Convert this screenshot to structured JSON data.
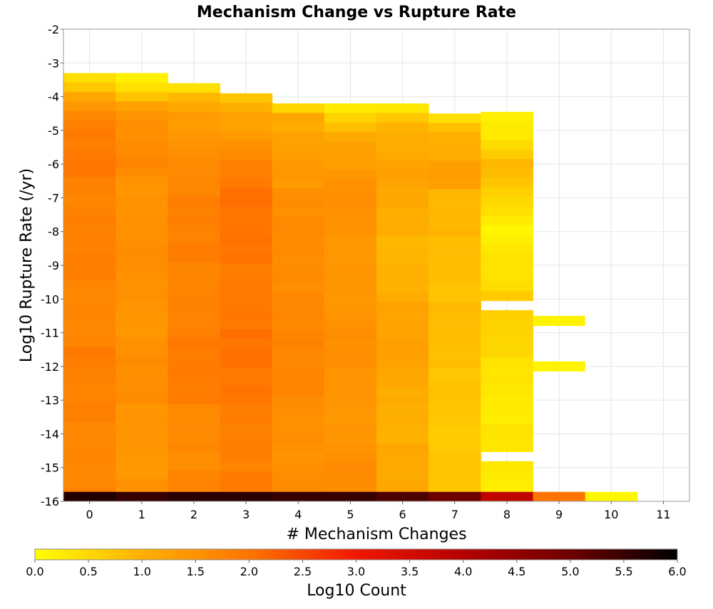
{
  "chart_data": {
    "type": "heatmap",
    "title": "Mechanism Change vs Rupture Rate",
    "xlabel": "# Mechanism Changes",
    "ylabel": "Log10 Rupture Rate (/yr)",
    "xlim": [
      -0.5,
      11.5
    ],
    "ylim": [
      -16,
      -2
    ],
    "x_ticks": [
      0,
      1,
      2,
      3,
      4,
      5,
      6,
      7,
      8,
      9,
      10,
      11
    ],
    "y_ticks": [
      -16,
      -15,
      -14,
      -13,
      -12,
      -11,
      -10,
      -9,
      -8,
      -7,
      -6,
      -5,
      -4,
      -3,
      -2
    ],
    "grid": true,
    "y_bin_width": 0.28,
    "colorbar": {
      "label": "Log10 Count",
      "range": [
        0,
        6
      ],
      "ticks": [
        "0.0",
        "0.5",
        "1.0",
        "1.5",
        "2.0",
        "2.5",
        "3.0",
        "3.5",
        "4.0",
        "4.5",
        "5.0",
        "5.5",
        "6.0"
      ],
      "stops": [
        {
          "v": 0.0,
          "color": "#ffff00"
        },
        {
          "v": 1.0,
          "color": "#ffb000"
        },
        {
          "v": 2.0,
          "color": "#ff7400"
        },
        {
          "v": 3.0,
          "color": "#f01800"
        },
        {
          "v": 4.0,
          "color": "#b40000"
        },
        {
          "v": 5.0,
          "color": "#6e0000"
        },
        {
          "v": 6.0,
          "color": "#000000"
        }
      ]
    },
    "columns": [
      {
        "x": 0,
        "ytop": -3.3,
        "base": 1.8,
        "profile": [
          [
            -3.3,
            0.15
          ],
          [
            -3.6,
            0.5
          ],
          [
            -3.9,
            1.0
          ],
          [
            -4.5,
            1.6
          ],
          [
            -5.2,
            1.9
          ],
          [
            -6.2,
            2.0
          ],
          [
            -7,
            1.7
          ],
          [
            -9,
            1.75
          ],
          [
            -11,
            1.8
          ],
          [
            -13,
            1.7
          ],
          [
            -15,
            1.75
          ],
          [
            -15.8,
            1.7
          ]
        ]
      },
      {
        "x": 1,
        "ytop": -3.3,
        "base": 1.5,
        "profile": [
          [
            -3.3,
            0.05
          ],
          [
            -3.8,
            0.4
          ],
          [
            -4.3,
            1.2
          ],
          [
            -5,
            1.55
          ],
          [
            -6,
            1.75
          ],
          [
            -7,
            1.4
          ],
          [
            -9,
            1.6
          ],
          [
            -11,
            1.5
          ],
          [
            -13,
            1.55
          ],
          [
            -15,
            1.5
          ],
          [
            -15.8,
            1.45
          ]
        ]
      },
      {
        "x": 2,
        "ytop": -3.6,
        "base": 1.7,
        "profile": [
          [
            -3.6,
            0.1
          ],
          [
            -4,
            0.9
          ],
          [
            -4.6,
            1.3
          ],
          [
            -5.5,
            1.6
          ],
          [
            -6.5,
            1.8
          ],
          [
            -8,
            1.75
          ],
          [
            -10,
            1.85
          ],
          [
            -12,
            1.8
          ],
          [
            -14,
            1.7
          ],
          [
            -15.8,
            1.65
          ]
        ]
      },
      {
        "x": 3,
        "ytop": -3.9,
        "base": 1.9,
        "profile": [
          [
            -3.9,
            0.5
          ],
          [
            -4.4,
            1.0
          ],
          [
            -5,
            1.4
          ],
          [
            -6,
            1.8
          ],
          [
            -6.5,
            2.0
          ],
          [
            -8,
            1.9
          ],
          [
            -9.5,
            2.0
          ],
          [
            -11,
            1.95
          ],
          [
            -13,
            1.9
          ],
          [
            -14.5,
            1.85
          ],
          [
            -15.8,
            1.8
          ]
        ]
      },
      {
        "x": 4,
        "ytop": -4.2,
        "base": 1.6,
        "profile": [
          [
            -4.2,
            0.1
          ],
          [
            -4.6,
            1.1
          ],
          [
            -5.5,
            1.35
          ],
          [
            -7,
            1.5
          ],
          [
            -8,
            1.55
          ],
          [
            -10,
            1.7
          ],
          [
            -12,
            1.65
          ],
          [
            -14,
            1.6
          ],
          [
            -15.8,
            1.55
          ]
        ]
      },
      {
        "x": 5,
        "ytop": -4.2,
        "base": 1.5,
        "profile": [
          [
            -4.2,
            0.1
          ],
          [
            -4.6,
            0.6
          ],
          [
            -5.2,
            1.2
          ],
          [
            -6.5,
            1.5
          ],
          [
            -8,
            1.4
          ],
          [
            -10,
            1.5
          ],
          [
            -12,
            1.45
          ],
          [
            -14,
            1.5
          ],
          [
            -15.8,
            1.55
          ]
        ]
      },
      {
        "x": 6,
        "ytop": -4.2,
        "base": 1.1,
        "profile": [
          [
            -4.2,
            0.1
          ],
          [
            -4.8,
            1.05
          ],
          [
            -6,
            1.2
          ],
          [
            -7.5,
            1.0
          ],
          [
            -9,
            1.0
          ],
          [
            -11,
            1.2
          ],
          [
            -12.5,
            1.15
          ],
          [
            -14,
            1.05
          ],
          [
            -15.8,
            1.1
          ]
        ]
      },
      {
        "x": 7,
        "ytop": -4.5,
        "base": 1.0,
        "profile": [
          [
            -4.5,
            0.2
          ],
          [
            -5,
            1.0
          ],
          [
            -6.5,
            1.3
          ],
          [
            -7,
            0.8
          ],
          [
            -9,
            0.9
          ],
          [
            -11,
            0.75
          ],
          [
            -13,
            0.8
          ],
          [
            -15,
            0.6
          ],
          [
            -15.8,
            0.7
          ]
        ]
      },
      {
        "x": 8,
        "ytop": -4.45,
        "base": 0.5,
        "profile": [
          [
            -4.45,
            0.2
          ],
          [
            -5.2,
            0.35
          ],
          [
            -6,
            0.8
          ],
          [
            -8,
            0.2
          ],
          [
            -10,
            0.6
          ],
          [
            -12,
            0.4
          ],
          [
            -14,
            0.3
          ],
          [
            -15.5,
            0.2
          ]
        ],
        "gaps": [
          [
            -10.4,
            -10.15
          ],
          [
            -14.8,
            -14.4
          ]
        ]
      },
      {
        "x": 9,
        "ytop": null,
        "base": null,
        "segments": [
          [
            -10.8,
            -10.5,
            0.15
          ],
          [
            -12.15,
            -11.85,
            0.15
          ]
        ]
      },
      {
        "x": 10,
        "ytop": null,
        "base": null,
        "segments": []
      }
    ],
    "bottom_row": {
      "y": -16,
      "values": [
        5.7,
        5.5,
        5.6,
        5.6,
        5.5,
        5.5,
        5.3,
        5.0,
        3.8,
        2.0,
        0.1
      ]
    }
  }
}
